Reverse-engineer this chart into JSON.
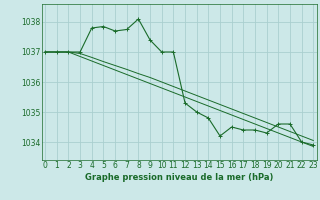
{
  "title": "Graphe pression niveau de la mer (hPa)",
  "background_color": "#cce8e8",
  "grid_color": "#aacfcf",
  "line_color": "#1a6b2a",
  "x_ticks": [
    0,
    1,
    2,
    3,
    4,
    5,
    6,
    7,
    8,
    9,
    10,
    11,
    12,
    13,
    14,
    15,
    16,
    17,
    18,
    19,
    20,
    21,
    22,
    23
  ],
  "y_ticks": [
    1034,
    1035,
    1036,
    1037,
    1038
  ],
  "ylim": [
    1033.4,
    1038.6
  ],
  "xlim": [
    -0.3,
    23.3
  ],
  "series1": [
    1037.0,
    1037.0,
    1037.0,
    1037.0,
    1037.8,
    1037.85,
    1037.7,
    1037.75,
    1038.1,
    1037.4,
    1037.0,
    1037.0,
    1035.3,
    1035.0,
    1034.8,
    1034.2,
    1034.5,
    1034.4,
    1034.4,
    1034.3,
    1034.6,
    1034.6,
    1034.0,
    1033.9
  ],
  "series2": [
    1037.0,
    1037.0,
    1037.0,
    1036.85,
    1036.7,
    1036.55,
    1036.4,
    1036.25,
    1036.1,
    1035.95,
    1035.8,
    1035.65,
    1035.5,
    1035.35,
    1035.2,
    1035.05,
    1034.9,
    1034.75,
    1034.6,
    1034.45,
    1034.3,
    1034.15,
    1034.0,
    1033.85
  ],
  "series3": [
    1037.0,
    1037.0,
    1037.0,
    1036.95,
    1036.82,
    1036.68,
    1036.55,
    1036.42,
    1036.28,
    1036.15,
    1036.0,
    1035.85,
    1035.7,
    1035.55,
    1035.4,
    1035.25,
    1035.1,
    1034.95,
    1034.8,
    1034.65,
    1034.5,
    1034.35,
    1034.2,
    1034.05
  ]
}
